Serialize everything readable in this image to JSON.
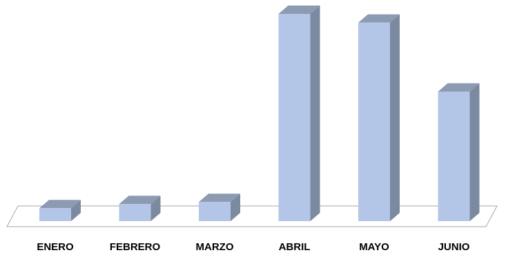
{
  "chart_data": {
    "type": "bar",
    "style": "3d-column",
    "categories": [
      "ENERO",
      "FEBRERO",
      "MARZO",
      "ABRIL",
      "MAYO",
      "JUNIO"
    ],
    "values": [
      2.5,
      3.3,
      3.7,
      40,
      38.3,
      25
    ],
    "ylim": [
      0,
      40
    ],
    "grid": false,
    "legend": "none",
    "title": "",
    "xlabel": "",
    "ylabel": "",
    "colors": {
      "bar_front": "#b3c6e8",
      "bar_side": "#7b8aa0",
      "bar_top": "#8c9ab2",
      "floor": "#ffffff",
      "floor_edge": "#a6a6a6"
    }
  }
}
